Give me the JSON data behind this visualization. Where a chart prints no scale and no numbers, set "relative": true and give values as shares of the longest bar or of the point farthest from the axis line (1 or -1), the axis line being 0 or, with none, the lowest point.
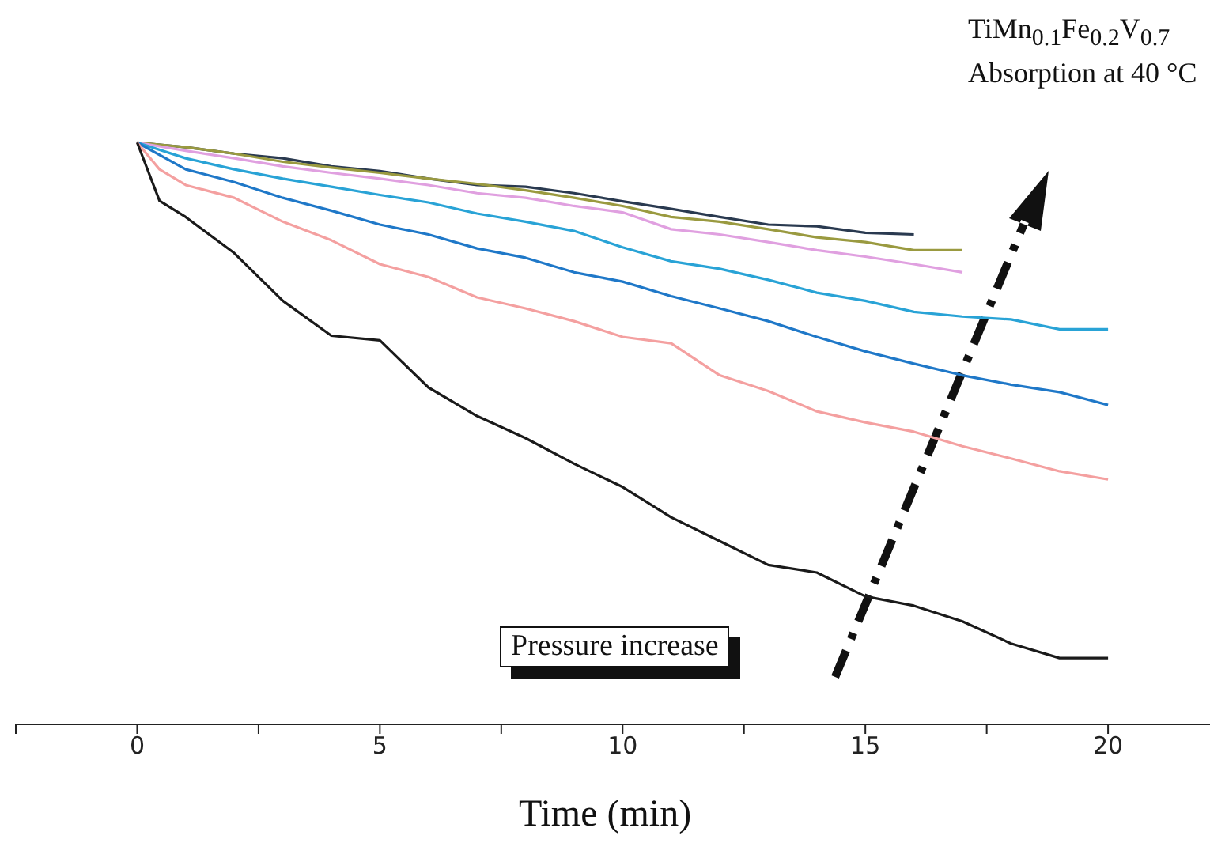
{
  "chart_data": {
    "type": "line",
    "relative": true,
    "title": "TiMn$_{0.1}$Fe$_{0.2}$V$_{0.7}$",
    "subtitle": "Absorption at 40 °C",
    "xlabel": "Time (min)",
    "annotations": [
      "Pressure increase"
    ],
    "xlim": [
      -2.5,
      22.1
    ],
    "xticks": [
      {
        "value": -2.5,
        "label": null
      },
      0,
      {
        "value": 2.5,
        "label": null
      },
      5,
      {
        "value": 7.5,
        "label": null
      },
      10,
      {
        "value": 12.5,
        "label": null
      },
      15,
      {
        "value": 17.5,
        "label": null
      },
      20
    ],
    "legend": false,
    "grid": false,
    "marker": "none",
    "line_style": "solid",
    "series": [
      {
        "color": "#2a3a50",
        "x": [
          0,
          1,
          2,
          3,
          4,
          5,
          6,
          7,
          8,
          9,
          10,
          11,
          12,
          13,
          14,
          15,
          16
        ],
        "values": [
          1,
          0.992,
          0.981,
          0.973,
          0.959,
          0.951,
          0.938,
          0.927,
          0.924,
          0.913,
          0.899,
          0.886,
          0.872,
          0.859,
          0.856,
          0.845,
          0.842
        ]
      },
      {
        "color": "#9a9a40",
        "x": [
          0,
          1,
          2,
          3,
          4,
          5,
          6,
          7,
          8,
          9,
          10,
          11,
          12,
          13,
          14,
          15,
          16,
          17
        ],
        "values": [
          1,
          0.992,
          0.981,
          0.967,
          0.957,
          0.948,
          0.938,
          0.929,
          0.918,
          0.905,
          0.891,
          0.872,
          0.864,
          0.851,
          0.837,
          0.829,
          0.815,
          0.815
        ]
      },
      {
        "color": "#e0a0e0",
        "x": [
          0,
          1,
          2,
          3,
          4,
          5,
          6,
          7,
          8,
          9,
          10,
          11,
          12,
          13,
          14,
          15,
          16,
          17
        ],
        "values": [
          1,
          0.986,
          0.973,
          0.959,
          0.948,
          0.938,
          0.927,
          0.913,
          0.905,
          0.891,
          0.88,
          0.851,
          0.842,
          0.829,
          0.815,
          0.804,
          0.791,
          0.777
        ]
      },
      {
        "color": "#29a3d6",
        "x": [
          0,
          1,
          2,
          3,
          4,
          5,
          6,
          7,
          8,
          9,
          10,
          11,
          12,
          13,
          14,
          15,
          16,
          17,
          18,
          19,
          20
        ],
        "values": [
          1,
          0.973,
          0.954,
          0.938,
          0.924,
          0.91,
          0.897,
          0.878,
          0.864,
          0.848,
          0.82,
          0.796,
          0.783,
          0.764,
          0.742,
          0.728,
          0.709,
          0.701,
          0.696,
          0.679,
          0.679
        ]
      },
      {
        "color": "#1f78c8",
        "x": [
          0,
          1,
          2,
          3,
          4,
          5,
          6,
          7,
          8,
          9,
          10,
          11,
          12,
          13,
          14,
          15,
          16,
          17,
          18,
          19,
          20
        ],
        "values": [
          1,
          0.954,
          0.932,
          0.905,
          0.883,
          0.859,
          0.842,
          0.818,
          0.802,
          0.777,
          0.761,
          0.736,
          0.715,
          0.693,
          0.666,
          0.641,
          0.62,
          0.6,
          0.584,
          0.571,
          0.549
        ]
      },
      {
        "color": "#f4a0a0",
        "x": [
          0,
          0.46,
          1,
          2,
          3,
          4,
          5,
          6,
          7,
          8,
          9,
          10,
          11,
          12,
          13,
          14,
          15,
          16,
          17,
          18,
          19,
          20
        ],
        "values": [
          1,
          0.954,
          0.927,
          0.905,
          0.864,
          0.832,
          0.791,
          0.769,
          0.734,
          0.715,
          0.693,
          0.666,
          0.655,
          0.6,
          0.573,
          0.538,
          0.519,
          0.503,
          0.478,
          0.457,
          0.435,
          0.421
        ]
      },
      {
        "color": "#1a1a1a",
        "x": [
          0,
          0.46,
          1,
          2,
          3,
          4,
          5,
          6,
          7,
          8,
          9,
          10,
          11,
          12,
          13,
          14,
          15,
          16,
          17,
          18,
          19,
          20
        ],
        "values": [
          1,
          0.9,
          0.872,
          0.81,
          0.728,
          0.668,
          0.66,
          0.579,
          0.53,
          0.492,
          0.448,
          0.408,
          0.356,
          0.315,
          0.274,
          0.261,
          0.22,
          0.204,
          0.177,
          0.139,
          0.114,
          0.114
        ]
      }
    ]
  }
}
